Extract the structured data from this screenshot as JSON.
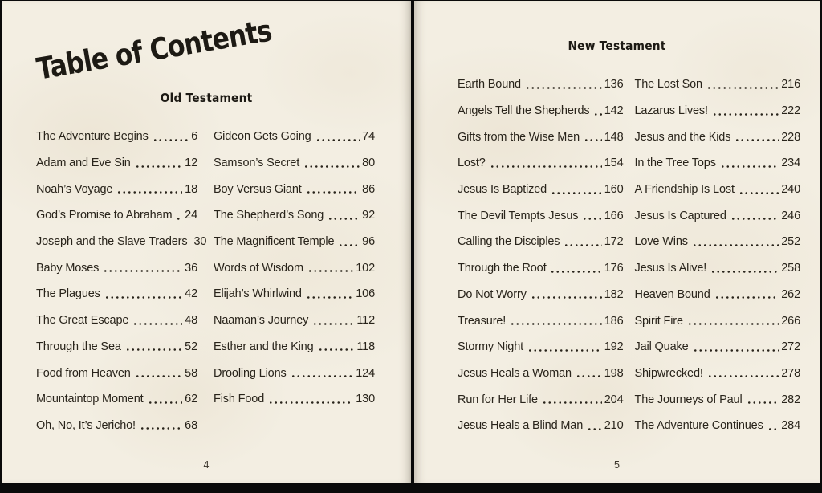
{
  "book": {
    "colors": {
      "paper": "#f3eee2",
      "ink": "#29241b",
      "edge": "#0a0a0a"
    },
    "title": "Table of Contents",
    "left_page": {
      "section_heading": "Old Testament",
      "page_number": "4",
      "column1": [
        {
          "title": "The Adventure Begins",
          "page": "6"
        },
        {
          "title": "Adam and Eve Sin",
          "page": "12"
        },
        {
          "title": "Noah’s Voyage",
          "page": "18"
        },
        {
          "title": "God’s Promise to Abraham",
          "page": "24"
        },
        {
          "title": "Joseph and the Slave Traders",
          "page": "30"
        },
        {
          "title": "Baby Moses",
          "page": "36"
        },
        {
          "title": "The Plagues",
          "page": "42"
        },
        {
          "title": "The Great Escape",
          "page": "48"
        },
        {
          "title": "Through the Sea",
          "page": "52"
        },
        {
          "title": "Food from Heaven",
          "page": "58"
        },
        {
          "title": "Mountaintop Moment",
          "page": "62"
        },
        {
          "title": "Oh, No, It’s Jericho!",
          "page": "68"
        }
      ],
      "column2": [
        {
          "title": "Gideon Gets Going",
          "page": "74"
        },
        {
          "title": "Samson’s Secret",
          "page": "80"
        },
        {
          "title": "Boy Versus Giant",
          "page": "86"
        },
        {
          "title": "The Shepherd’s Song",
          "page": "92"
        },
        {
          "title": "The Magnificent Temple",
          "page": "96"
        },
        {
          "title": "Words of Wisdom",
          "page": "102"
        },
        {
          "title": "Elijah’s Whirlwind",
          "page": "106"
        },
        {
          "title": "Naaman’s Journey",
          "page": "112"
        },
        {
          "title": "Esther and the King",
          "page": "118"
        },
        {
          "title": "Drooling Lions",
          "page": "124"
        },
        {
          "title": "Fish Food",
          "page": "130"
        }
      ]
    },
    "right_page": {
      "section_heading": "New Testament",
      "page_number": "5",
      "column1": [
        {
          "title": "Earth Bound",
          "page": "136"
        },
        {
          "title": "Angels Tell the Shepherds",
          "page": "142"
        },
        {
          "title": "Gifts from the Wise Men",
          "page": "148"
        },
        {
          "title": "Lost?",
          "page": "154"
        },
        {
          "title": "Jesus Is Baptized",
          "page": "160"
        },
        {
          "title": "The Devil Tempts Jesus",
          "page": "166"
        },
        {
          "title": "Calling the Disciples",
          "page": "172"
        },
        {
          "title": "Through the Roof",
          "page": "176"
        },
        {
          "title": "Do Not Worry",
          "page": "182"
        },
        {
          "title": "Treasure!",
          "page": "186"
        },
        {
          "title": "Stormy Night",
          "page": "192"
        },
        {
          "title": "Jesus Heals a Woman",
          "page": "198"
        },
        {
          "title": "Run for Her Life",
          "page": "204"
        },
        {
          "title": "Jesus Heals a Blind Man",
          "page": "210"
        }
      ],
      "column2": [
        {
          "title": "The Lost Son",
          "page": "216"
        },
        {
          "title": "Lazarus Lives!",
          "page": "222"
        },
        {
          "title": "Jesus and the Kids",
          "page": "228"
        },
        {
          "title": "In the Tree Tops",
          "page": "234"
        },
        {
          "title": "A Friendship Is Lost",
          "page": "240"
        },
        {
          "title": "Jesus Is Captured",
          "page": "246"
        },
        {
          "title": "Love Wins",
          "page": "252"
        },
        {
          "title": "Jesus Is Alive!",
          "page": "258"
        },
        {
          "title": "Heaven Bound",
          "page": "262"
        },
        {
          "title": "Spirit Fire",
          "page": "266"
        },
        {
          "title": "Jail Quake",
          "page": "272"
        },
        {
          "title": "Shipwrecked!",
          "page": "278"
        },
        {
          "title": "The Journeys of Paul",
          "page": "282"
        },
        {
          "title": "The Adventure Continues",
          "page": "284"
        }
      ]
    }
  }
}
